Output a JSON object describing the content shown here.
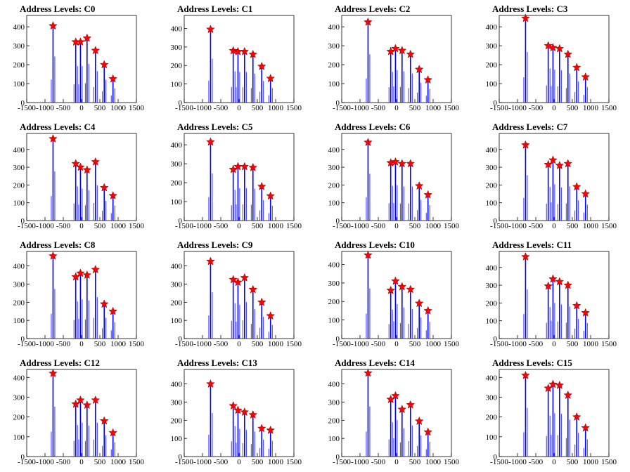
{
  "colors": {
    "histogram": "#0000ff",
    "marker": "#ff0000",
    "axis": "#000000",
    "background": "#ffffff"
  },
  "chart_data": [
    {
      "type": "bar",
      "title": "Address Levels: C0",
      "xlim": [
        -1500,
        1500
      ],
      "ylim": [
        0,
        460
      ],
      "yticks": [
        "0",
        "100",
        "200",
        "300",
        "400"
      ],
      "xticks": [
        "-1500",
        "-1000",
        "-500",
        "0",
        "500",
        "1000",
        "1500"
      ],
      "grid": false,
      "peaks": {
        "x": [
          -780,
          -160,
          -30,
          150,
          380,
          620,
          860
        ],
        "y": [
          405,
          320,
          320,
          340,
          275,
          200,
          125
        ]
      }
    },
    {
      "type": "bar",
      "title": "Address Levels: C1",
      "xlim": [
        -1500,
        1500
      ],
      "ylim": [
        0,
        470
      ],
      "yticks": [
        "0",
        "100",
        "200",
        "300",
        "400"
      ],
      "xticks": [
        "-1500",
        "-1000",
        "-500",
        "0",
        "500",
        "1000",
        "1500"
      ],
      "grid": false,
      "peaks": {
        "x": [
          -780,
          -160,
          -30,
          150,
          380,
          620,
          860
        ],
        "y": [
          395,
          280,
          275,
          275,
          260,
          195,
          130
        ]
      }
    },
    {
      "type": "bar",
      "title": "Address Levels: C2",
      "xlim": [
        -1500,
        1500
      ],
      "ylim": [
        0,
        460
      ],
      "yticks": [
        "0",
        "100",
        "200",
        "300",
        "400"
      ],
      "xticks": [
        "-1500",
        "-1000",
        "-500",
        "0",
        "500",
        "1000",
        "1500"
      ],
      "grid": false,
      "peaks": {
        "x": [
          -780,
          -160,
          -30,
          150,
          380,
          620,
          860
        ],
        "y": [
          425,
          270,
          285,
          275,
          255,
          175,
          120
        ]
      }
    },
    {
      "type": "bar",
      "title": "Address Levels: C3",
      "xlim": [
        -1500,
        1500
      ],
      "ylim": [
        0,
        460
      ],
      "yticks": [
        "0",
        "100",
        "200",
        "300",
        "400"
      ],
      "xticks": [
        "-1500",
        "-1000",
        "-500",
        "0",
        "500",
        "1000",
        "1500"
      ],
      "grid": false,
      "peaks": {
        "x": [
          -780,
          -160,
          -30,
          150,
          380,
          620,
          860
        ],
        "y": [
          445,
          300,
          290,
          285,
          255,
          185,
          135
        ]
      }
    },
    {
      "type": "bar",
      "title": "Address Levels: C4",
      "xlim": [
        -1500,
        1500
      ],
      "ylim": [
        0,
        490
      ],
      "yticks": [
        "0",
        "100",
        "200",
        "300",
        "400"
      ],
      "xticks": [
        "-1500",
        "-1000",
        "-500",
        "0",
        "500",
        "1000",
        "1500"
      ],
      "grid": false,
      "peaks": {
        "x": [
          -780,
          -160,
          -30,
          150,
          380,
          620,
          860
        ],
        "y": [
          460,
          320,
          300,
          285,
          330,
          185,
          140
        ]
      }
    },
    {
      "type": "bar",
      "title": "Address Levels: C5",
      "xlim": [
        -1500,
        1500
      ],
      "ylim": [
        0,
        460
      ],
      "yticks": [
        "0",
        "100",
        "200",
        "300",
        "400"
      ],
      "xticks": [
        "-1500",
        "-1000",
        "-500",
        "0",
        "500",
        "1000",
        "1500"
      ],
      "grid": false,
      "peaks": {
        "x": [
          -780,
          -160,
          -30,
          150,
          380,
          620,
          860
        ],
        "y": [
          415,
          270,
          285,
          285,
          280,
          180,
          130
        ]
      }
    },
    {
      "type": "bar",
      "title": "Address Levels: C6",
      "xlim": [
        -1500,
        1500
      ],
      "ylim": [
        0,
        490
      ],
      "yticks": [
        "0",
        "100",
        "200",
        "300",
        "400"
      ],
      "xticks": [
        "-1500",
        "-1000",
        "-500",
        "0",
        "500",
        "1000",
        "1500"
      ],
      "grid": false,
      "peaks": {
        "x": [
          -780,
          -160,
          -30,
          150,
          380,
          620,
          860
        ],
        "y": [
          440,
          325,
          330,
          320,
          320,
          195,
          145
        ]
      }
    },
    {
      "type": "bar",
      "title": "Address Levels: C7",
      "xlim": [
        -1500,
        1500
      ],
      "ylim": [
        0,
        490
      ],
      "yticks": [
        "0",
        "100",
        "200",
        "300",
        "400"
      ],
      "xticks": [
        "-1500",
        "-1000",
        "-500",
        "0",
        "500",
        "1000",
        "1500"
      ],
      "grid": false,
      "peaks": {
        "x": [
          -780,
          -160,
          -30,
          150,
          380,
          620,
          860
        ],
        "y": [
          425,
          315,
          340,
          310,
          320,
          190,
          150
        ]
      }
    },
    {
      "type": "bar",
      "title": "Address Levels: C8",
      "xlim": [
        -1500,
        1500
      ],
      "ylim": [
        0,
        480
      ],
      "yticks": [
        "0",
        "100",
        "200",
        "300",
        "400"
      ],
      "xticks": [
        "-1500",
        "-1000",
        "-500",
        "0",
        "500",
        "1000",
        "1500"
      ],
      "grid": false,
      "peaks": {
        "x": [
          -780,
          -160,
          -30,
          150,
          380,
          620,
          860
        ],
        "y": [
          455,
          340,
          360,
          350,
          380,
          190,
          150
        ]
      }
    },
    {
      "type": "bar",
      "title": "Address Levels: C9",
      "xlim": [
        -1500,
        1500
      ],
      "ylim": [
        0,
        480
      ],
      "yticks": [
        "0",
        "100",
        "200",
        "300",
        "400"
      ],
      "xticks": [
        "-1500",
        "-1000",
        "-500",
        "0",
        "500",
        "1000",
        "1500"
      ],
      "grid": false,
      "peaks": {
        "x": [
          -780,
          -160,
          -30,
          150,
          380,
          620,
          860
        ],
        "y": [
          425,
          325,
          310,
          335,
          270,
          200,
          125
        ]
      }
    },
    {
      "type": "bar",
      "title": "Address Levels: C10",
      "xlim": [
        -1500,
        1500
      ],
      "ylim": [
        0,
        470
      ],
      "yticks": [
        "0",
        "100",
        "200",
        "300",
        "400"
      ],
      "xticks": [
        "-1500",
        "-1000",
        "-500",
        "0",
        "500",
        "1000",
        "1500"
      ],
      "grid": false,
      "peaks": {
        "x": [
          -780,
          -160,
          -30,
          150,
          380,
          620,
          860
        ],
        "y": [
          450,
          260,
          310,
          280,
          265,
          190,
          150
        ]
      }
    },
    {
      "type": "bar",
      "title": "Address Levels: C11",
      "xlim": [
        -1500,
        1500
      ],
      "ylim": [
        0,
        490
      ],
      "yticks": [
        "0",
        "100",
        "200",
        "300",
        "400"
      ],
      "xticks": [
        "-1500",
        "-1000",
        "-500",
        "0",
        "500",
        "1000",
        "1500"
      ],
      "grid": false,
      "peaks": {
        "x": [
          -780,
          -160,
          -30,
          150,
          380,
          620,
          860
        ],
        "y": [
          460,
          295,
          335,
          320,
          300,
          185,
          145
        ]
      }
    },
    {
      "type": "bar",
      "title": "Address Levels: C12",
      "xlim": [
        -1500,
        1500
      ],
      "ylim": [
        0,
        440
      ],
      "yticks": [
        "0",
        "100",
        "200",
        "300",
        "400"
      ],
      "xticks": [
        "-1500",
        "-1000",
        "-500",
        "0",
        "500",
        "1000",
        "1500"
      ],
      "grid": false,
      "peaks": {
        "x": [
          -780,
          -160,
          -30,
          150,
          380,
          620,
          860
        ],
        "y": [
          420,
          265,
          285,
          260,
          285,
          180,
          120
        ]
      }
    },
    {
      "type": "bar",
      "title": "Address Levels: C13",
      "xlim": [
        -1500,
        1500
      ],
      "ylim": [
        0,
        480
      ],
      "yticks": [
        "0",
        "100",
        "200",
        "300",
        "400"
      ],
      "xticks": [
        "-1500",
        "-1000",
        "-500",
        "0",
        "500",
        "1000",
        "1500"
      ],
      "grid": false,
      "peaks": {
        "x": [
          -780,
          -160,
          -30,
          150,
          380,
          620,
          860
        ],
        "y": [
          400,
          280,
          255,
          245,
          230,
          155,
          145
        ]
      }
    },
    {
      "type": "bar",
      "title": "Address Levels: C14",
      "xlim": [
        -1500,
        1500
      ],
      "ylim": [
        0,
        480
      ],
      "yticks": [
        "0",
        "100",
        "200",
        "300",
        "400"
      ],
      "xticks": [
        "-1500",
        "-1000",
        "-500",
        "0",
        "500",
        "1000",
        "1500"
      ],
      "grid": false,
      "peaks": {
        "x": [
          -780,
          -160,
          -30,
          150,
          380,
          620,
          860
        ],
        "y": [
          460,
          315,
          335,
          260,
          285,
          195,
          135
        ]
      }
    },
    {
      "type": "bar",
      "title": "Address Levels: C15",
      "xlim": [
        -1500,
        1500
      ],
      "ylim": [
        0,
        440
      ],
      "yticks": [
        "0",
        "100",
        "200",
        "300",
        "400"
      ],
      "xticks": [
        "-1500",
        "-1000",
        "-500",
        "0",
        "500",
        "1000",
        "1500"
      ],
      "grid": false,
      "peaks": {
        "x": [
          -780,
          -160,
          -30,
          150,
          380,
          620,
          860
        ],
        "y": [
          410,
          345,
          365,
          360,
          310,
          200,
          145
        ]
      }
    }
  ]
}
